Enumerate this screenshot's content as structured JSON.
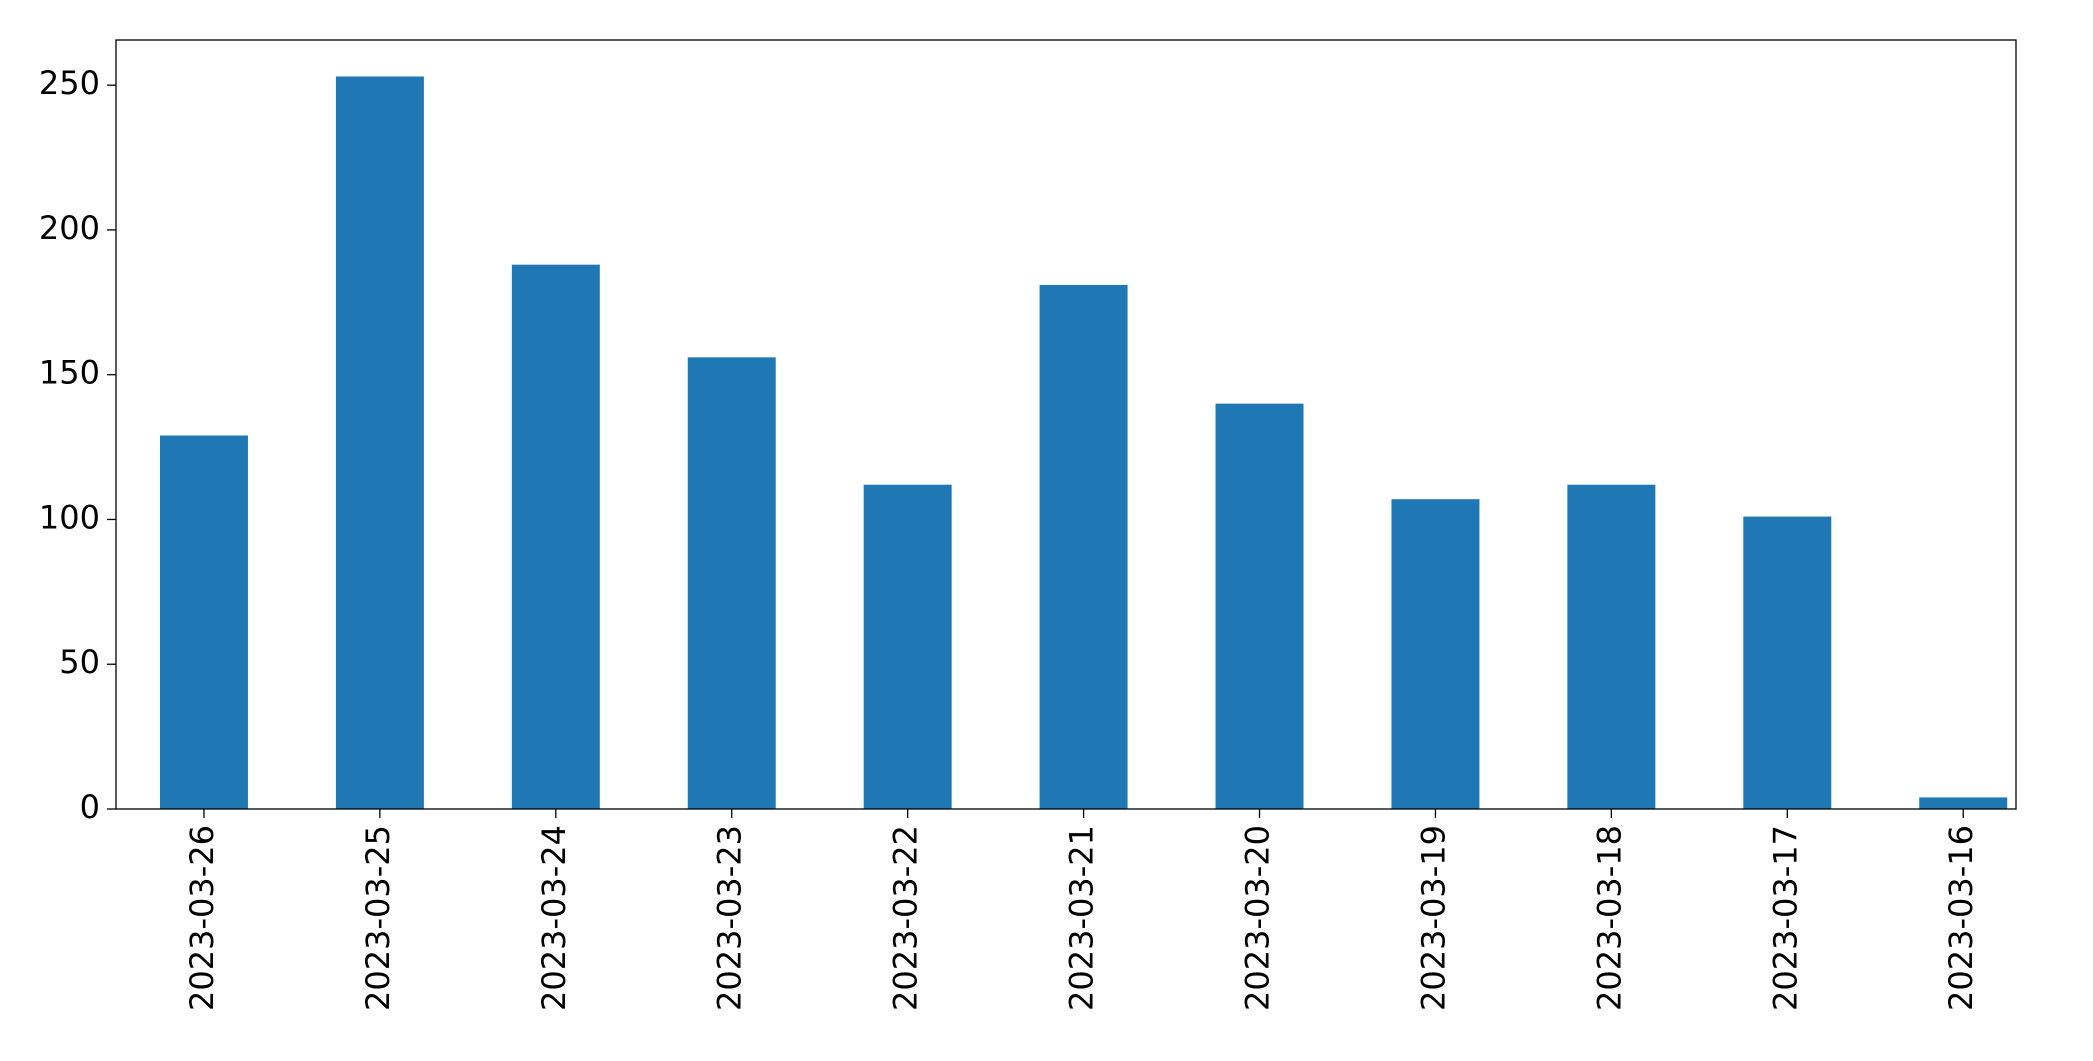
{
  "chart_data": {
    "type": "bar",
    "categories": [
      "2023-03-26",
      "2023-03-25",
      "2023-03-24",
      "2023-03-23",
      "2023-03-22",
      "2023-03-21",
      "2023-03-20",
      "2023-03-19",
      "2023-03-18",
      "2023-03-17",
      "2023-03-16"
    ],
    "values": [
      129,
      253,
      188,
      156,
      112,
      181,
      140,
      107,
      112,
      101,
      4
    ],
    "color": "#1f77b4",
    "ylim": [
      0,
      265.6
    ],
    "yticks": [
      0,
      50,
      100,
      150,
      200,
      250
    ],
    "grid": false
  }
}
